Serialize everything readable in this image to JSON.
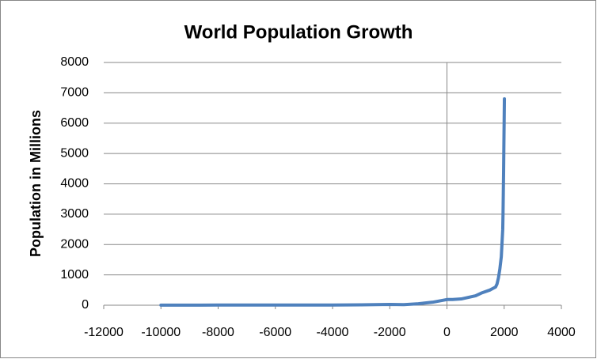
{
  "chart_data": {
    "type": "line",
    "title": "World Population Growth",
    "y_label": "Population in Millions",
    "x": [
      -10000,
      -8000,
      -6000,
      -4000,
      -3000,
      -2000,
      -1500,
      -1000,
      -500,
      0,
      200,
      500,
      1000,
      1200,
      1500,
      1600,
      1700,
      1750,
      1800,
      1850,
      1900,
      1950,
      1960,
      1970,
      1980,
      1990,
      2000,
      2008
    ],
    "series": [
      {
        "name": "Population",
        "color": "#4f81bd",
        "values": [
          4,
          5,
          5,
          7,
          14,
          27,
          20,
          50,
          100,
          188,
          190,
          207,
          310,
          400,
          500,
          550,
          600,
          700,
          900,
          1200,
          1600,
          2500,
          3000,
          3700,
          4400,
          5300,
          6100,
          6800
        ]
      }
    ],
    "xlim": [
      -12000,
      4000
    ],
    "xticks": [
      -12000,
      -10000,
      -8000,
      -6000,
      -4000,
      -2000,
      0,
      2000,
      4000
    ],
    "ylim": [
      0,
      8000
    ],
    "yticks": [
      0,
      1000,
      2000,
      3000,
      4000,
      5000,
      6000,
      7000,
      8000
    ],
    "grid": true
  }
}
